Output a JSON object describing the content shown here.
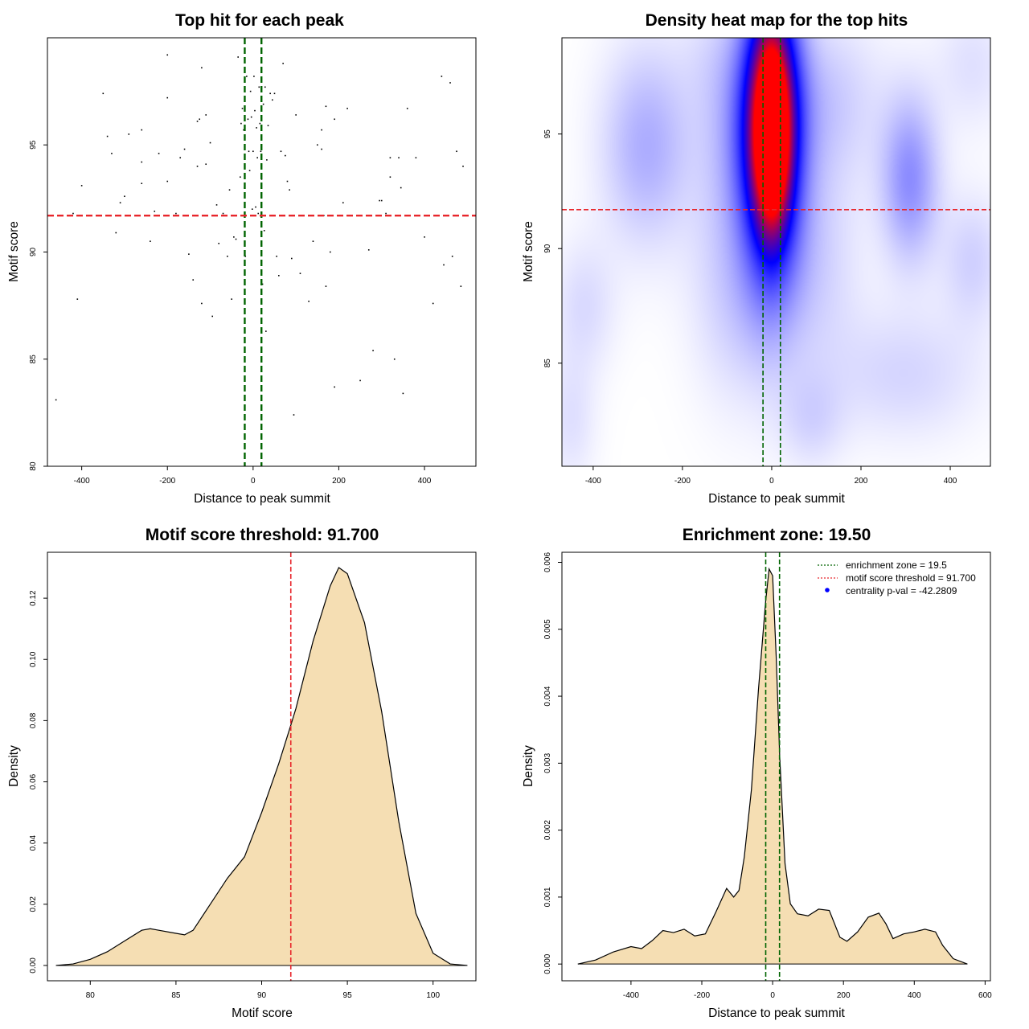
{
  "chart_data": [
    {
      "id": "scatter",
      "type": "scatter",
      "title": "Top hit for each peak",
      "xlabel": "Distance to peak summit",
      "ylabel": "Motif score",
      "xlim": [
        -480,
        520
      ],
      "ylim": [
        80,
        100
      ],
      "xticks": [
        -400,
        -200,
        0,
        200,
        400
      ],
      "yticks": [
        80,
        85,
        90,
        95
      ],
      "ref_lines": {
        "vertical": [
          -19.5,
          19.5
        ],
        "vertical_color": "#006400",
        "horizontal": [
          91.7
        ],
        "horizontal_color": "#e8262b"
      },
      "points": [
        [
          -460,
          83.1
        ],
        [
          -420,
          91.8
        ],
        [
          -410,
          87.8
        ],
        [
          -400,
          93.1
        ],
        [
          -350,
          97.4
        ],
        [
          -340,
          95.4
        ],
        [
          -330,
          94.6
        ],
        [
          -320,
          90.9
        ],
        [
          -310,
          92.3
        ],
        [
          -300,
          92.6
        ],
        [
          -290,
          95.5
        ],
        [
          -260,
          95.7
        ],
        [
          -260,
          94.2
        ],
        [
          -260,
          93.2
        ],
        [
          -240,
          90.5
        ],
        [
          -230,
          91.9
        ],
        [
          -220,
          94.6
        ],
        [
          -200,
          93.3
        ],
        [
          -200,
          97.2
        ],
        [
          -200,
          99.2
        ],
        [
          -180,
          91.8
        ],
        [
          -170,
          94.4
        ],
        [
          -160,
          94.8
        ],
        [
          -150,
          89.9
        ],
        [
          -140,
          88.7
        ],
        [
          -130,
          96.1
        ],
        [
          -130,
          94.0
        ],
        [
          -125,
          96.2
        ],
        [
          -120,
          98.6
        ],
        [
          -120,
          87.6
        ],
        [
          -110,
          96.4
        ],
        [
          -110,
          94.1
        ],
        [
          -100,
          95.1
        ],
        [
          -95,
          87.0
        ],
        [
          -90,
          91.7
        ],
        [
          -85,
          92.2
        ],
        [
          -80,
          90.4
        ],
        [
          -70,
          91.8
        ],
        [
          -60,
          89.8
        ],
        [
          -55,
          92.9
        ],
        [
          -50,
          87.8
        ],
        [
          -45,
          90.7
        ],
        [
          -40,
          90.6
        ],
        [
          -35,
          99.1
        ],
        [
          -30,
          93.5
        ],
        [
          -28,
          96.0
        ],
        [
          -25,
          96.7
        ],
        [
          -22,
          95.7
        ],
        [
          -20,
          93.0
        ],
        [
          -18,
          89.8
        ],
        [
          -15,
          98.2
        ],
        [
          -12,
          96.2
        ],
        [
          -10,
          94.7
        ],
        [
          -8,
          93.8
        ],
        [
          -6,
          97.5
        ],
        [
          -4,
          96.3
        ],
        [
          -2,
          92.0
        ],
        [
          0,
          94.7
        ],
        [
          2,
          98.2
        ],
        [
          4,
          96.6
        ],
        [
          6,
          92.1
        ],
        [
          8,
          95.8
        ],
        [
          10,
          94.4
        ],
        [
          12,
          91.8
        ],
        [
          14,
          97.7
        ],
        [
          16,
          96.0
        ],
        [
          18,
          94.7
        ],
        [
          20,
          93.4
        ],
        [
          22,
          88.5
        ],
        [
          24,
          96.9
        ],
        [
          26,
          91.0
        ],
        [
          28,
          97.7
        ],
        [
          30,
          86.3
        ],
        [
          32,
          94.3
        ],
        [
          35,
          95.9
        ],
        [
          40,
          97.4
        ],
        [
          45,
          97.1
        ],
        [
          50,
          97.4
        ],
        [
          55,
          89.8
        ],
        [
          60,
          88.9
        ],
        [
          65,
          94.7
        ],
        [
          70,
          98.8
        ],
        [
          75,
          94.5
        ],
        [
          80,
          93.3
        ],
        [
          85,
          92.9
        ],
        [
          90,
          89.7
        ],
        [
          95,
          82.4
        ],
        [
          100,
          96.4
        ],
        [
          110,
          89.0
        ],
        [
          130,
          87.7
        ],
        [
          140,
          90.5
        ],
        [
          150,
          95.0
        ],
        [
          160,
          95.7
        ],
        [
          160,
          94.8
        ],
        [
          165,
          91.7
        ],
        [
          170,
          96.8
        ],
        [
          170,
          88.4
        ],
        [
          180,
          90.0
        ],
        [
          190,
          96.2
        ],
        [
          190,
          83.7
        ],
        [
          210,
          92.3
        ],
        [
          220,
          96.7
        ],
        [
          250,
          84.0
        ],
        [
          270,
          90.1
        ],
        [
          280,
          85.4
        ],
        [
          295,
          92.4
        ],
        [
          300,
          92.4
        ],
        [
          310,
          91.8
        ],
        [
          320,
          94.4
        ],
        [
          320,
          93.5
        ],
        [
          330,
          85.0
        ],
        [
          340,
          94.4
        ],
        [
          345,
          93.0
        ],
        [
          350,
          83.4
        ],
        [
          360,
          96.7
        ],
        [
          380,
          94.4
        ],
        [
          400,
          90.7
        ],
        [
          420,
          87.6
        ],
        [
          440,
          98.2
        ],
        [
          445,
          89.4
        ],
        [
          460,
          97.9
        ],
        [
          465,
          89.8
        ],
        [
          475,
          94.7
        ],
        [
          485,
          88.4
        ],
        [
          490,
          94.0
        ]
      ]
    },
    {
      "id": "heatmap",
      "type": "heatmap",
      "title": "Density heat map for the top hits",
      "xlabel": "Distance to peak summit",
      "ylabel": "Motif score",
      "xlim": [
        -470,
        490
      ],
      "ylim": [
        80.5,
        99.2
      ],
      "xticks": [
        -400,
        -200,
        0,
        200,
        400
      ],
      "yticks": [
        85,
        90,
        95
      ],
      "ref_lines": {
        "vertical": [
          -19.5,
          19.5
        ],
        "vertical_color": "#006400",
        "horizontal": [
          91.7
        ],
        "horizontal_color": "#e8262b"
      },
      "hotspots": [
        {
          "x": 0,
          "y": 95.0,
          "sx": 24,
          "sy": 2.4,
          "w": 1.0
        },
        {
          "x": 0,
          "y": 95.5,
          "sx": 45,
          "sy": 4.5,
          "w": 0.75
        },
        {
          "x": -40,
          "y": 95.0,
          "sx": 70,
          "sy": 3.0,
          "w": 0.18
        },
        {
          "x": 310,
          "y": 93.0,
          "sx": 45,
          "sy": 2.5,
          "w": 0.22
        },
        {
          "x": -280,
          "y": 94.5,
          "sx": 70,
          "sy": 3.0,
          "w": 0.16
        },
        {
          "x": 120,
          "y": 96.5,
          "sx": 90,
          "sy": 2.5,
          "w": 0.1
        },
        {
          "x": 80,
          "y": 89.5,
          "sx": 80,
          "sy": 3.5,
          "w": 0.1
        },
        {
          "x": -80,
          "y": 88.5,
          "sx": 70,
          "sy": 3.5,
          "w": 0.1
        },
        {
          "x": 450,
          "y": 89.5,
          "sx": 50,
          "sy": 2.0,
          "w": 0.09
        },
        {
          "x": -420,
          "y": 87.5,
          "sx": 50,
          "sy": 2.0,
          "w": 0.07
        },
        {
          "x": 300,
          "y": 84.5,
          "sx": 120,
          "sy": 2.0,
          "w": 0.08
        },
        {
          "x": 90,
          "y": 82.5,
          "sx": 50,
          "sy": 1.5,
          "w": 0.07
        },
        {
          "x": -450,
          "y": 82.5,
          "sx": 40,
          "sy": 2.0,
          "w": 0.06
        },
        {
          "x": 450,
          "y": 98.0,
          "sx": 60,
          "sy": 2.0,
          "w": 0.06
        },
        {
          "x": -120,
          "y": 98.5,
          "sx": 60,
          "sy": 2.0,
          "w": 0.05
        }
      ]
    },
    {
      "id": "score-density",
      "type": "area",
      "title": "Motif score threshold: 91.700",
      "xlabel": "Motif score",
      "ylabel": "Density",
      "xlim": [
        77.5,
        102.5
      ],
      "ylim": [
        -0.005,
        0.135
      ],
      "xticks": [
        80,
        85,
        90,
        95,
        100
      ],
      "yticks": [
        0.0,
        0.02,
        0.04,
        0.06,
        0.08,
        0.1,
        0.12
      ],
      "yticklabels": [
        "0.00",
        "0.02",
        "0.04",
        "0.06",
        "0.08",
        "0.10",
        "0.12"
      ],
      "fill": "#f5deb3",
      "ref_lines": {
        "vertical": [
          91.7
        ],
        "vertical_color": "#e8262b"
      },
      "x": [
        78,
        79,
        80,
        81,
        82,
        83,
        83.5,
        84,
        85,
        85.5,
        86,
        87,
        88,
        89,
        90,
        91,
        91.7,
        92,
        93,
        94,
        94.5,
        95,
        96,
        97,
        98,
        99,
        100,
        101,
        102
      ],
      "y": [
        0.0,
        0.0005,
        0.002,
        0.0045,
        0.008,
        0.0115,
        0.012,
        0.0115,
        0.0105,
        0.01,
        0.0115,
        0.02,
        0.0285,
        0.0355,
        0.05,
        0.066,
        0.0785,
        0.084,
        0.106,
        0.124,
        0.13,
        0.128,
        0.112,
        0.083,
        0.047,
        0.017,
        0.004,
        0.0005,
        0.0
      ]
    },
    {
      "id": "distance-density",
      "type": "area",
      "title": "Enrichment zone: 19.50",
      "xlabel": "Distance to peak summit",
      "ylabel": "Density",
      "xlim": [
        -595,
        615
      ],
      "ylim": [
        -0.00025,
        0.00615
      ],
      "xticks": [
        -400,
        -200,
        0,
        200,
        400,
        600
      ],
      "yticks": [
        0.0,
        0.001,
        0.002,
        0.003,
        0.004,
        0.005,
        0.006
      ],
      "yticklabels": [
        "0.000",
        "0.001",
        "0.002",
        "0.003",
        "0.004",
        "0.005",
        "0.006"
      ],
      "fill": "#f5deb3",
      "ref_lines": {
        "vertical": [
          -19.5,
          19.5
        ],
        "vertical_color": "#006400"
      },
      "x": [
        -550,
        -500,
        -450,
        -400,
        -370,
        -340,
        -310,
        -280,
        -250,
        -220,
        -190,
        -160,
        -130,
        -110,
        -95,
        -80,
        -60,
        -40,
        -20,
        -10,
        0,
        10,
        20,
        35,
        50,
        70,
        100,
        130,
        160,
        190,
        210,
        240,
        270,
        300,
        320,
        340,
        370,
        400,
        430,
        460,
        480,
        510,
        550
      ],
      "y": [
        0.0,
        6e-05,
        0.00018,
        0.00026,
        0.00023,
        0.00035,
        0.0005,
        0.00047,
        0.00052,
        0.00042,
        0.00045,
        0.00078,
        0.00113,
        0.001,
        0.0011,
        0.0016,
        0.0026,
        0.0041,
        0.0054,
        0.0059,
        0.0058,
        0.0046,
        0.0031,
        0.0015,
        0.0009,
        0.00075,
        0.00072,
        0.00082,
        0.0008,
        0.0004,
        0.00034,
        0.00048,
        0.0007,
        0.00076,
        0.0006,
        0.00038,
        0.00045,
        0.00048,
        0.00052,
        0.00048,
        0.00028,
        8e-05,
        0.0
      ]
    }
  ],
  "legend": {
    "enrichment_zone": "enrichment zone = 19.5",
    "motif_threshold": "motif score threshold = 91.700",
    "centrality": "centrality p-val = -42.2809",
    "enrichment_color": "#006400",
    "threshold_color": "#e8262b",
    "centrality_color": "#0000ff"
  }
}
